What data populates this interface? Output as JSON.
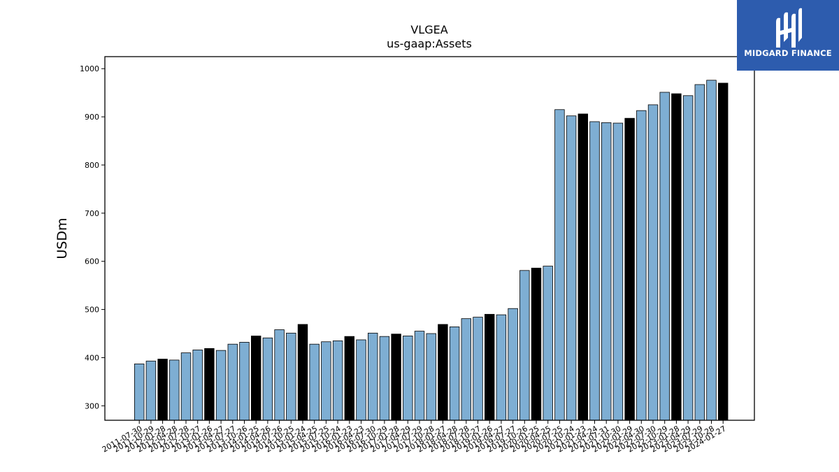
{
  "chart_data": {
    "type": "bar",
    "title": "VLGEA",
    "subtitle": "us-gaap:Assets",
    "ylabel": "USDm",
    "xlabel": "",
    "ylim": [
      270,
      1025
    ],
    "yticks": [
      300,
      400,
      500,
      600,
      700,
      800,
      900,
      1000
    ],
    "colors": {
      "default": "#7eaed3",
      "highlight": "#000000",
      "edge": "#000000"
    },
    "categories": [
      "2011-07-30",
      "2011-10-29",
      "2012-01-28",
      "2012-04-28",
      "2012-07-28",
      "2012-10-27",
      "2013-01-26",
      "2013-04-27",
      "2013-07-27",
      "2013-10-26",
      "2014-01-25",
      "2014-04-26",
      "2014-07-26",
      "2014-10-25",
      "2015-01-24",
      "2015-04-25",
      "2015-07-25",
      "2015-10-24",
      "2016-01-23",
      "2016-04-23",
      "2016-07-30",
      "2016-10-29",
      "2017-01-28",
      "2017-04-29",
      "2017-07-29",
      "2017-10-28",
      "2018-01-27",
      "2018-04-28",
      "2018-07-28",
      "2018-10-27",
      "2019-01-26",
      "2019-04-27",
      "2019-07-27",
      "2019-10-26",
      "2020-01-25",
      "2020-04-25",
      "2020-07-25",
      "2020-10-24",
      "2021-01-23",
      "2021-04-24",
      "2021-07-31",
      "2021-10-30",
      "2022-01-29",
      "2022-04-30",
      "2022-07-30",
      "2022-10-29",
      "2023-01-28",
      "2023-04-29",
      "2023-07-29",
      "2023-10-28",
      "2024-01-27"
    ],
    "values": [
      387,
      393,
      397,
      395,
      410,
      416,
      419,
      415,
      428,
      432,
      445,
      441,
      458,
      451,
      469,
      428,
      433,
      435,
      444,
      437,
      451,
      444,
      449,
      445,
      455,
      450,
      469,
      464,
      481,
      484,
      490,
      489,
      502,
      581,
      586,
      590,
      915,
      902,
      906,
      890,
      888,
      887,
      897,
      913,
      925,
      951,
      948,
      944,
      967,
      976,
      970
    ],
    "highlight": [
      false,
      false,
      true,
      false,
      false,
      false,
      true,
      false,
      false,
      false,
      true,
      false,
      false,
      false,
      true,
      false,
      false,
      false,
      true,
      false,
      false,
      false,
      true,
      false,
      false,
      false,
      true,
      false,
      false,
      false,
      true,
      false,
      false,
      false,
      true,
      false,
      false,
      false,
      true,
      false,
      false,
      false,
      true,
      false,
      false,
      false,
      true,
      false,
      false,
      false,
      true
    ]
  },
  "logo": {
    "text": "MIDGARD FINANCE",
    "background": "#2d5cae",
    "icon": "midgard-m-logo-icon"
  }
}
